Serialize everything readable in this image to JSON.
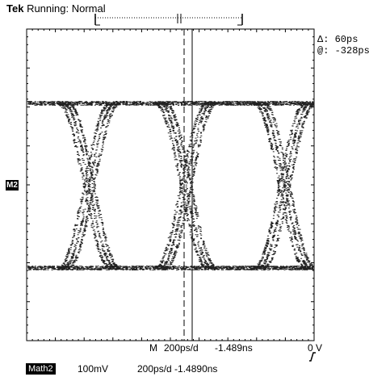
{
  "header": {
    "brand": "Tek",
    "status": "Running: Normal"
  },
  "measurements": {
    "delta": "Δ: 60ps",
    "at": "@: -328ps"
  },
  "channel_marker": "M2",
  "timebase": {
    "main": "M",
    "per_div": "200ps/d",
    "position": "-1.489ns",
    "trigger_level": "0 V"
  },
  "trigger_icon": "rising-edge-icon",
  "math": {
    "label": "Math2",
    "scale": "100mV",
    "timebase": "200ps/d -1.4890ns"
  }
}
